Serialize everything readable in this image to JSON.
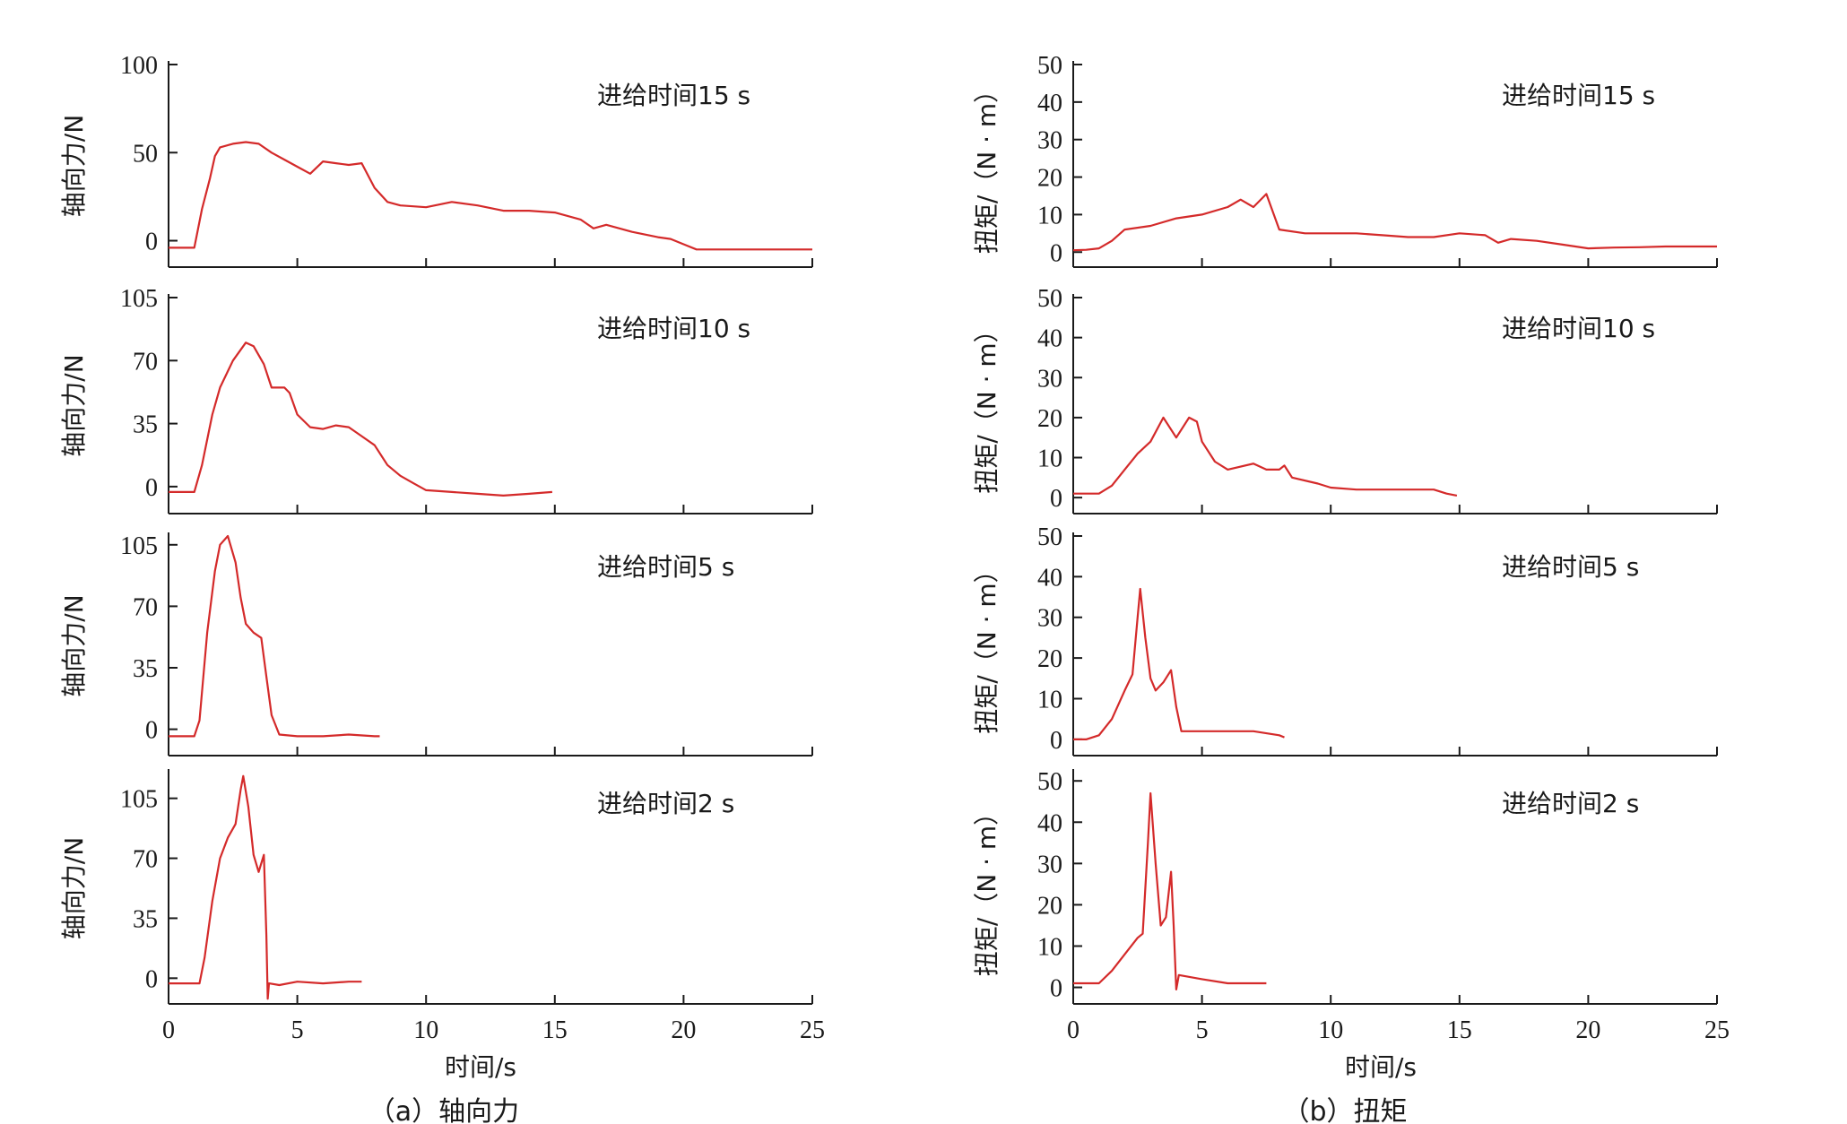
{
  "colors": {
    "series": "#d42a2a",
    "axis": "#1a1a1a"
  },
  "chart_data": [
    {
      "type": "line",
      "panel": "axial-force-15s",
      "annotation": "进给时间15 s",
      "ylabel": "轴向力/N",
      "yticks": [
        0,
        50,
        100
      ],
      "ylim": [
        -15,
        100
      ],
      "xlim": [
        0,
        25
      ],
      "series": [
        {
          "points": [
            [
              0,
              -4
            ],
            [
              1,
              -4
            ],
            [
              1.3,
              18
            ],
            [
              1.6,
              35
            ],
            [
              1.8,
              48
            ],
            [
              2,
              53
            ],
            [
              2.5,
              55
            ],
            [
              3,
              56
            ],
            [
              3.5,
              55
            ],
            [
              4,
              50
            ],
            [
              4.5,
              46
            ],
            [
              5,
              42
            ],
            [
              5.5,
              38
            ],
            [
              6,
              45
            ],
            [
              6.5,
              44
            ],
            [
              7,
              43
            ],
            [
              7.5,
              44
            ],
            [
              8,
              30
            ],
            [
              8.5,
              22
            ],
            [
              9,
              20
            ],
            [
              10,
              19
            ],
            [
              11,
              22
            ],
            [
              12,
              20
            ],
            [
              13,
              17
            ],
            [
              14,
              17
            ],
            [
              15,
              16
            ],
            [
              16,
              12
            ],
            [
              16.5,
              7
            ],
            [
              17,
              9
            ],
            [
              18,
              5
            ],
            [
              19,
              2
            ],
            [
              19.5,
              1
            ],
            [
              20,
              -2
            ],
            [
              20.5,
              -5
            ],
            [
              22,
              -5
            ],
            [
              23,
              -5
            ],
            [
              25,
              -5
            ]
          ]
        }
      ]
    },
    {
      "type": "line",
      "panel": "axial-force-10s",
      "annotation": "进给时间10 s",
      "ylabel": "轴向力/N",
      "yticks": [
        0,
        35,
        70,
        105
      ],
      "ylim": [
        -15,
        105
      ],
      "xlim": [
        0,
        25
      ],
      "series": [
        {
          "points": [
            [
              0,
              -3
            ],
            [
              1,
              -3
            ],
            [
              1.3,
              12
            ],
            [
              1.7,
              40
            ],
            [
              2,
              55
            ],
            [
              2.5,
              70
            ],
            [
              3,
              80
            ],
            [
              3.3,
              78
            ],
            [
              3.7,
              68
            ],
            [
              4,
              55
            ],
            [
              4.5,
              55
            ],
            [
              4.7,
              52
            ],
            [
              5,
              40
            ],
            [
              5.5,
              33
            ],
            [
              6,
              32
            ],
            [
              6.5,
              34
            ],
            [
              7,
              33
            ],
            [
              7.5,
              28
            ],
            [
              8,
              23
            ],
            [
              8.5,
              12
            ],
            [
              9,
              6
            ],
            [
              9.5,
              2
            ],
            [
              10,
              -2
            ],
            [
              11,
              -3
            ],
            [
              12,
              -4
            ],
            [
              13,
              -5
            ],
            [
              14,
              -4
            ],
            [
              14.9,
              -3
            ]
          ]
        }
      ]
    },
    {
      "type": "line",
      "panel": "axial-force-5s",
      "annotation": "进给时间5 s",
      "ylabel": "轴向力/N",
      "yticks": [
        0,
        35,
        70,
        105
      ],
      "ylim": [
        -15,
        110
      ],
      "xlim": [
        0,
        25
      ],
      "series": [
        {
          "points": [
            [
              0,
              -4
            ],
            [
              1,
              -4
            ],
            [
              1.2,
              5
            ],
            [
              1.5,
              55
            ],
            [
              1.8,
              90
            ],
            [
              2,
              105
            ],
            [
              2.3,
              110
            ],
            [
              2.6,
              95
            ],
            [
              2.8,
              75
            ],
            [
              3,
              60
            ],
            [
              3.3,
              55
            ],
            [
              3.6,
              52
            ],
            [
              3.8,
              30
            ],
            [
              4,
              8
            ],
            [
              4.3,
              -3
            ],
            [
              5,
              -4
            ],
            [
              6,
              -4
            ],
            [
              7,
              -3
            ],
            [
              8,
              -4
            ],
            [
              8.2,
              -4
            ]
          ]
        }
      ]
    },
    {
      "type": "line",
      "panel": "axial-force-2s",
      "annotation": "进给时间2 s",
      "ylabel": "轴向力/N",
      "yticks": [
        0,
        35,
        70,
        105
      ],
      "ylim": [
        -15,
        120
      ],
      "xlim": [
        0,
        25
      ],
      "series": [
        {
          "points": [
            [
              0,
              -3
            ],
            [
              1.2,
              -3
            ],
            [
              1.4,
              12
            ],
            [
              1.7,
              45
            ],
            [
              2,
              70
            ],
            [
              2.3,
              82
            ],
            [
              2.6,
              90
            ],
            [
              2.8,
              110
            ],
            [
              2.9,
              118
            ],
            [
              3.1,
              100
            ],
            [
              3.3,
              72
            ],
            [
              3.5,
              62
            ],
            [
              3.7,
              72
            ],
            [
              3.8,
              25
            ],
            [
              3.85,
              -12
            ],
            [
              3.9,
              -3
            ],
            [
              4.3,
              -4
            ],
            [
              5,
              -2
            ],
            [
              6,
              -3
            ],
            [
              7,
              -2
            ],
            [
              7.5,
              -2
            ]
          ]
        }
      ]
    },
    {
      "type": "line",
      "panel": "torque-15s",
      "annotation": "进给时间15 s",
      "ylabel": "扭矩/（N · m）",
      "yticks": [
        0,
        10,
        20,
        30,
        40,
        50
      ],
      "ylim": [
        -4,
        50
      ],
      "xlim": [
        0,
        25
      ],
      "series": [
        {
          "points": [
            [
              0,
              0.5
            ],
            [
              0.5,
              0.6
            ],
            [
              1,
              1
            ],
            [
              1.5,
              3
            ],
            [
              2,
              6
            ],
            [
              3,
              7
            ],
            [
              4,
              9
            ],
            [
              5,
              10
            ],
            [
              6,
              12
            ],
            [
              6.5,
              14
            ],
            [
              7,
              12
            ],
            [
              7.5,
              15.5
            ],
            [
              8,
              6
            ],
            [
              9,
              5
            ],
            [
              10,
              5
            ],
            [
              11,
              5
            ],
            [
              12,
              4.5
            ],
            [
              13,
              4
            ],
            [
              14,
              4
            ],
            [
              15,
              5
            ],
            [
              16,
              4.5
            ],
            [
              16.5,
              2.5
            ],
            [
              17,
              3.5
            ],
            [
              18,
              3
            ],
            [
              19,
              2
            ],
            [
              20,
              1
            ],
            [
              21,
              1.2
            ],
            [
              22,
              1.3
            ],
            [
              23,
              1.5
            ],
            [
              24,
              1.5
            ],
            [
              25,
              1.5
            ]
          ]
        }
      ]
    },
    {
      "type": "line",
      "panel": "torque-10s",
      "annotation": "进给时间10 s",
      "ylabel": "扭矩/（N · m）",
      "yticks": [
        0,
        10,
        20,
        30,
        40,
        50
      ],
      "ylim": [
        -4,
        50
      ],
      "xlim": [
        0,
        25
      ],
      "series": [
        {
          "points": [
            [
              0,
              1
            ],
            [
              1,
              1
            ],
            [
              1.5,
              3
            ],
            [
              2,
              7
            ],
            [
              2.5,
              11
            ],
            [
              3,
              14
            ],
            [
              3.5,
              20
            ],
            [
              4,
              15
            ],
            [
              4.5,
              20
            ],
            [
              4.8,
              19
            ],
            [
              5,
              14
            ],
            [
              5.5,
              9
            ],
            [
              6,
              7
            ],
            [
              7,
              8.5
            ],
            [
              7.5,
              7
            ],
            [
              8,
              7
            ],
            [
              8.2,
              8
            ],
            [
              8.5,
              5
            ],
            [
              9.5,
              3.5
            ],
            [
              10,
              2.5
            ],
            [
              11,
              2
            ],
            [
              12,
              2
            ],
            [
              13,
              2
            ],
            [
              14,
              2
            ],
            [
              14.5,
              1
            ],
            [
              14.9,
              0.5
            ]
          ]
        }
      ]
    },
    {
      "type": "line",
      "panel": "torque-5s",
      "annotation": "进给时间5 s",
      "ylabel": "扭矩/（N · m）",
      "yticks": [
        0,
        10,
        20,
        30,
        40,
        50
      ],
      "ylim": [
        -4,
        50
      ],
      "xlim": [
        0,
        25
      ],
      "series": [
        {
          "points": [
            [
              0,
              0
            ],
            [
              0.5,
              0
            ],
            [
              1,
              1
            ],
            [
              1.5,
              5
            ],
            [
              2,
              12
            ],
            [
              2.3,
              16
            ],
            [
              2.5,
              30
            ],
            [
              2.6,
              37
            ],
            [
              2.8,
              25
            ],
            [
              3,
              15
            ],
            [
              3.2,
              12
            ],
            [
              3.5,
              14
            ],
            [
              3.8,
              17
            ],
            [
              4,
              8
            ],
            [
              4.2,
              2
            ],
            [
              5,
              2
            ],
            [
              6,
              2
            ],
            [
              7,
              2
            ],
            [
              8,
              1
            ],
            [
              8.2,
              0.5
            ]
          ]
        }
      ]
    },
    {
      "type": "line",
      "panel": "torque-2s",
      "annotation": "进给时间2 s",
      "ylabel": "扭矩/（N · m）",
      "yticks": [
        0,
        10,
        20,
        30,
        40,
        50
      ],
      "ylim": [
        -4,
        52
      ],
      "xlim": [
        0,
        25
      ],
      "series": [
        {
          "points": [
            [
              0,
              1
            ],
            [
              1,
              1
            ],
            [
              1.5,
              4
            ],
            [
              2,
              8
            ],
            [
              2.5,
              12
            ],
            [
              2.7,
              13
            ],
            [
              2.9,
              35
            ],
            [
              3,
              47
            ],
            [
              3.2,
              30
            ],
            [
              3.4,
              15
            ],
            [
              3.6,
              17
            ],
            [
              3.8,
              28
            ],
            [
              3.9,
              15
            ],
            [
              4,
              -0.5
            ],
            [
              4.1,
              3
            ],
            [
              5,
              2
            ],
            [
              6,
              1
            ],
            [
              7,
              1
            ],
            [
              7.5,
              1
            ]
          ]
        }
      ]
    }
  ],
  "xlabel": "时间/s",
  "xticks": [
    0,
    5,
    10,
    15,
    20,
    25
  ],
  "caption_a": "（a）轴向力",
  "caption_b": "（b）扭矩"
}
